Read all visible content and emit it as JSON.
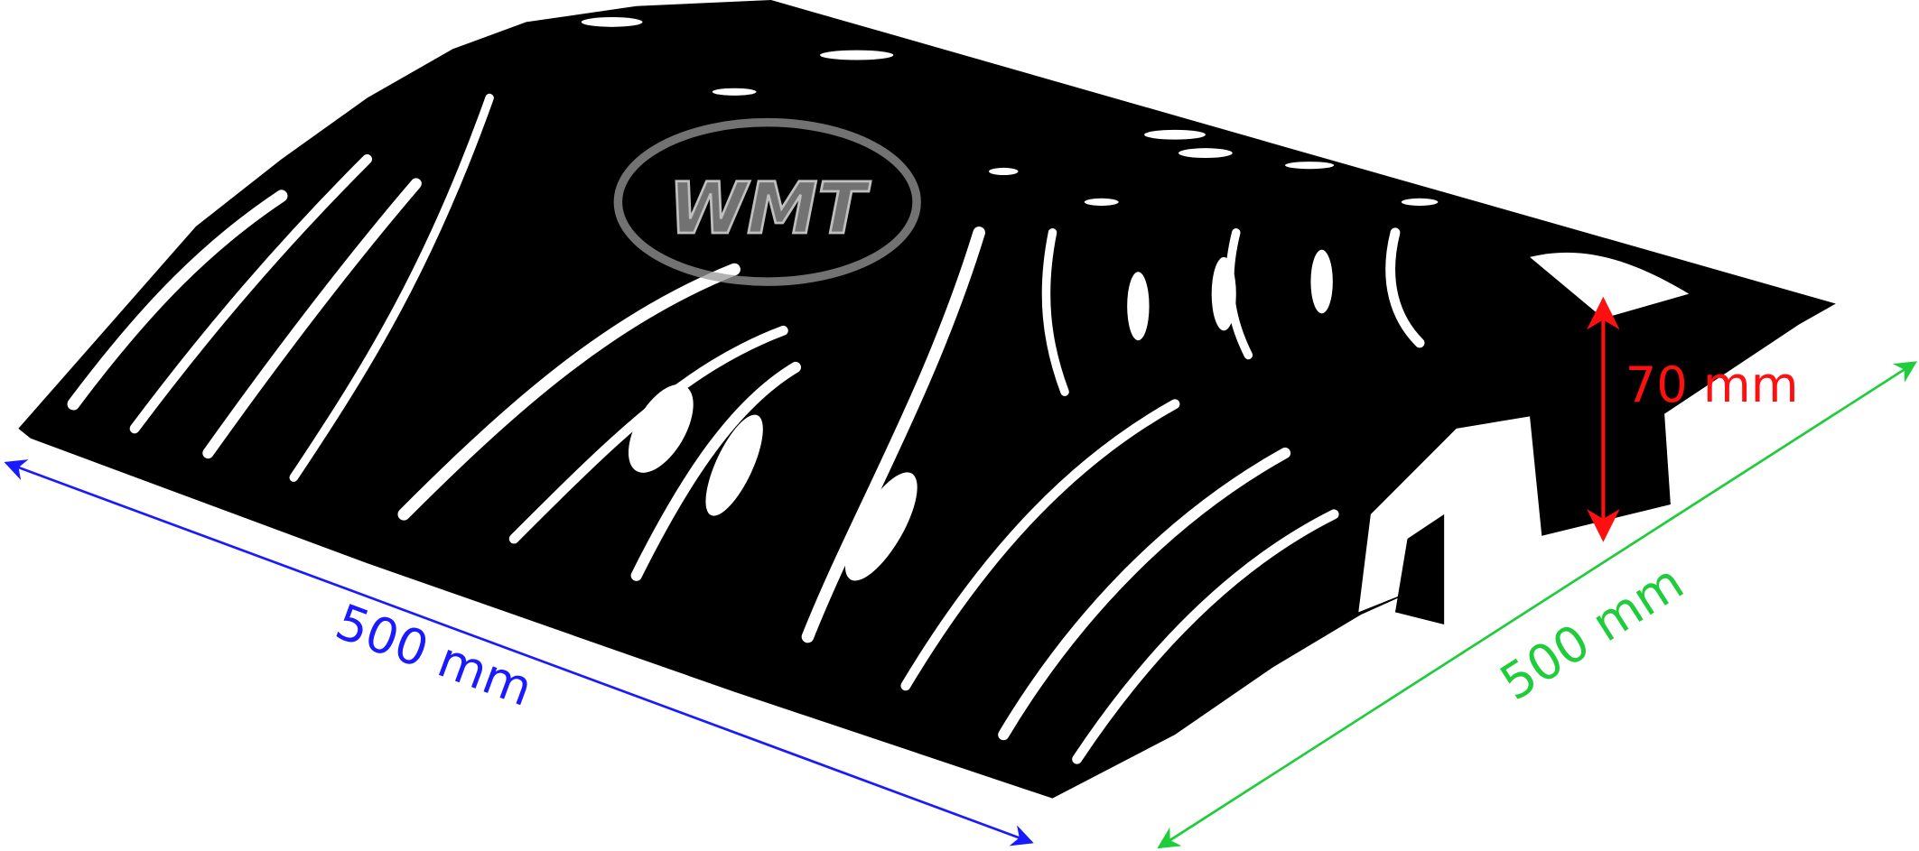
{
  "dimensions": [
    {
      "label": "500 mm"
    },
    {
      "label": "500 mm"
    },
    {
      "label": "70 mm"
    }
  ],
  "logo": {
    "text": "WMT"
  }
}
